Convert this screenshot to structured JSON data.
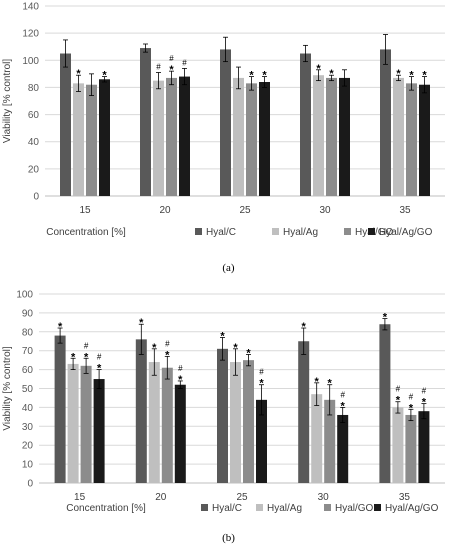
{
  "chart_data": [
    {
      "type": "bar",
      "panel_caption": "(a)",
      "xlabel": "Concentration [%]",
      "ylabel": "Viability [% control]",
      "ylim": [
        0,
        140
      ],
      "yticks": [
        0,
        20,
        40,
        60,
        80,
        100,
        120,
        140
      ],
      "grid": true,
      "legend_position": "bottom",
      "categories": [
        "15",
        "20",
        "25",
        "30",
        "35"
      ],
      "series": [
        {
          "name": "Hyal/C",
          "color": "#595959",
          "values": [
            105,
            109,
            108,
            105,
            108
          ],
          "errors": [
            10,
            3,
            9,
            6,
            11
          ],
          "annotations": [
            "",
            "",
            "",
            "",
            ""
          ]
        },
        {
          "name": "Hyal/Ag",
          "color": "#bfbfbf",
          "values": [
            83,
            85,
            87,
            89,
            87
          ],
          "errors": [
            6,
            6,
            8,
            4,
            2
          ],
          "annotations": [
            "*",
            "#",
            "",
            "*",
            "*"
          ]
        },
        {
          "name": "Hyal/GO",
          "color": "#8c8c8c",
          "values": [
            82,
            87,
            83,
            87,
            83
          ],
          "errors": [
            8,
            5,
            5,
            2,
            5
          ],
          "annotations": [
            "",
            "#\n*",
            "*",
            "*",
            "*"
          ]
        },
        {
          "name": "Hyal/Ag/GO",
          "color": "#1a1a1a",
          "values": [
            86,
            88,
            84,
            87,
            82
          ],
          "errors": [
            2,
            6,
            4,
            6,
            6
          ],
          "annotations": [
            "*",
            "#",
            "*",
            "",
            "*"
          ]
        }
      ]
    },
    {
      "type": "bar",
      "panel_caption": "(b)",
      "xlabel": "Concentration [%]",
      "ylabel": "Viability [% control]",
      "ylim": [
        0,
        100
      ],
      "yticks": [
        0,
        10,
        20,
        30,
        40,
        50,
        60,
        70,
        80,
        90,
        100
      ],
      "grid": true,
      "legend_position": "bottom",
      "categories": [
        "15",
        "20",
        "25",
        "30",
        "35"
      ],
      "series": [
        {
          "name": "Hyal/C",
          "color": "#595959",
          "values": [
            78,
            76,
            71,
            75,
            84
          ],
          "errors": [
            4,
            8,
            6,
            7,
            3
          ],
          "annotations": [
            "*",
            "*",
            "*",
            "*",
            "*"
          ]
        },
        {
          "name": "Hyal/Ag",
          "color": "#bfbfbf",
          "values": [
            63,
            64,
            64,
            47,
            40
          ],
          "errors": [
            3,
            7,
            7,
            6,
            3
          ],
          "annotations": [
            "*",
            "*",
            "*",
            "*",
            "#\n*"
          ]
        },
        {
          "name": "Hyal/GO",
          "color": "#8c8c8c",
          "values": [
            62,
            61,
            65,
            44,
            36
          ],
          "errors": [
            4,
            6,
            3,
            8,
            3
          ],
          "annotations": [
            "#\n*",
            "#\n*",
            "*",
            "*",
            "#\n*"
          ]
        },
        {
          "name": "Hyal/Ag/GO",
          "color": "#1a1a1a",
          "values": [
            55,
            52,
            44,
            36,
            38
          ],
          "errors": [
            5,
            2,
            8,
            4,
            4
          ],
          "annotations": [
            "#\n*",
            "#\n*",
            "#\n*",
            "#\n*",
            "#\n*"
          ]
        }
      ]
    }
  ]
}
